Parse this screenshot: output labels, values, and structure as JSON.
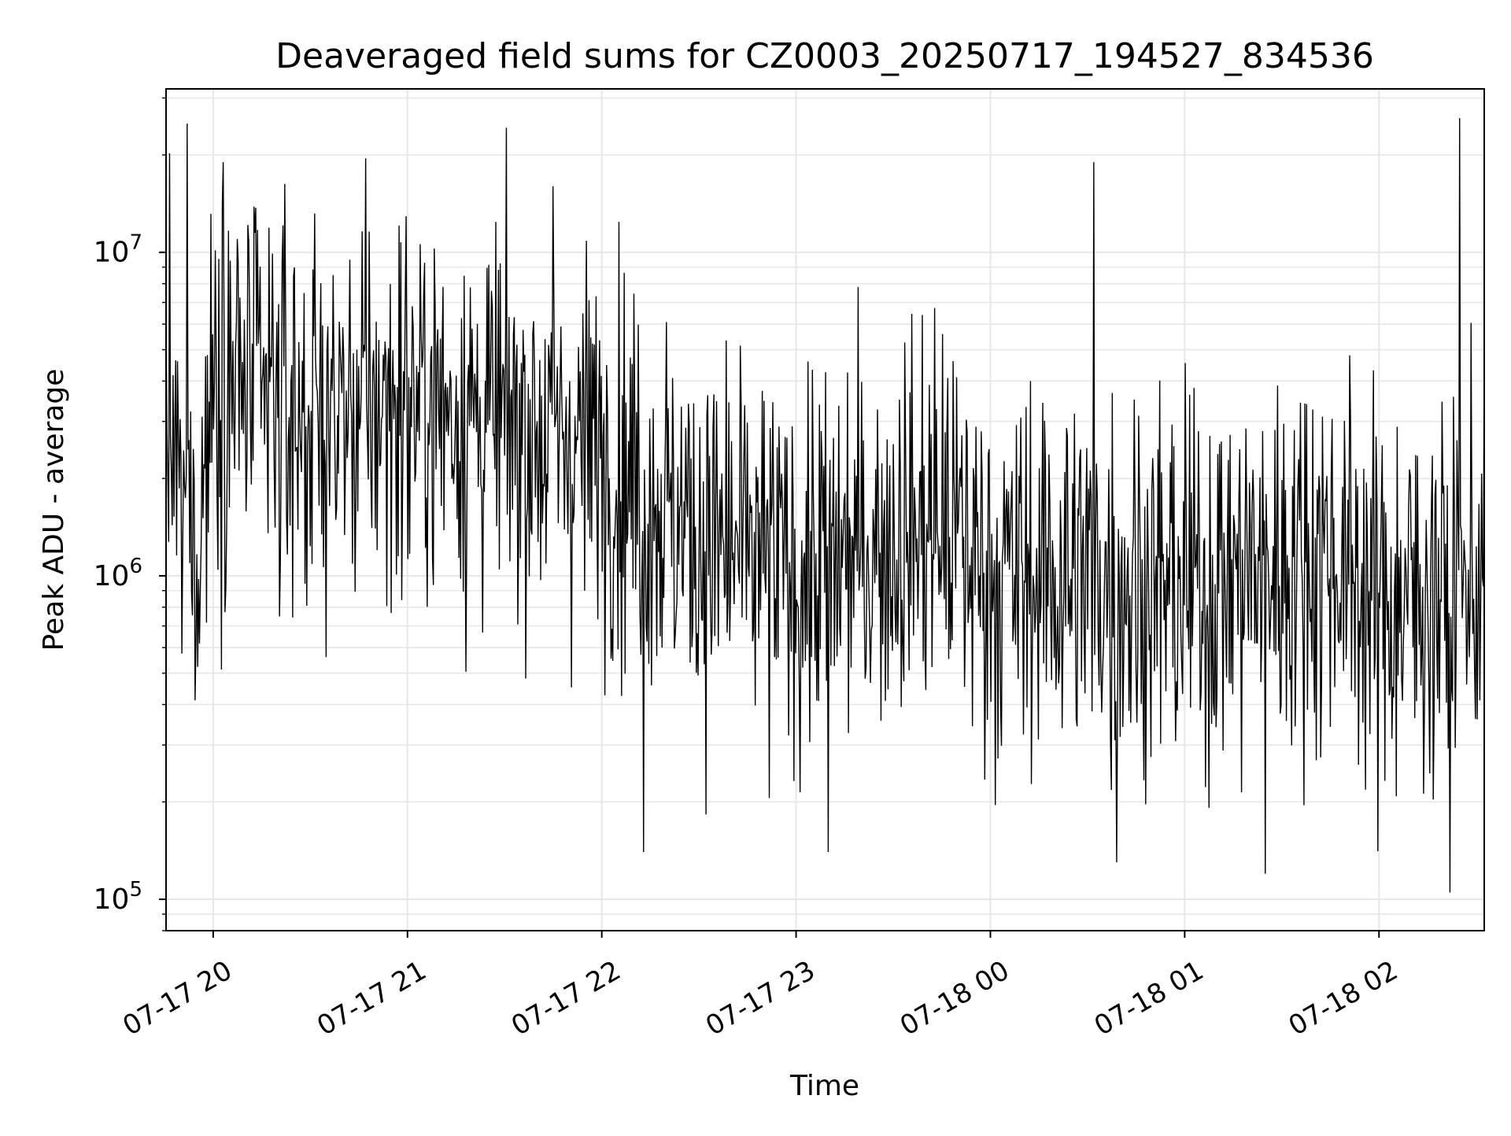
{
  "chart_data": {
    "type": "line",
    "title": "Deaveraged field sums for CZ0003_20250717_194527_834536",
    "xlabel": "Time",
    "ylabel": "Peak ADU - average",
    "yscale": "log",
    "ylim": [
      80000,
      32000000
    ],
    "xlim": [
      "2025-07-17 19:45:27",
      "2025-07-18 02:32:30"
    ],
    "x_ticks": [
      {
        "value": "2025-07-17 20:00",
        "label": "07-17 20"
      },
      {
        "value": "2025-07-17 21:00",
        "label": "07-17 21"
      },
      {
        "value": "2025-07-17 22:00",
        "label": "07-17 22"
      },
      {
        "value": "2025-07-17 23:00",
        "label": "07-17 23"
      },
      {
        "value": "2025-07-18 00:00",
        "label": "07-18 00"
      },
      {
        "value": "2025-07-18 01:00",
        "label": "07-18 01"
      },
      {
        "value": "2025-07-18 02:00",
        "label": "07-18 02"
      }
    ],
    "y_ticks": [
      {
        "value": 100000,
        "base": "10",
        "exp": "5"
      },
      {
        "value": 1000000,
        "base": "10",
        "exp": "6"
      },
      {
        "value": 10000000,
        "base": "10",
        "exp": "7"
      }
    ],
    "grid": true,
    "line_color": "#000000",
    "series": [
      {
        "anchors": [
          {
            "x": "2025-07-17 19:45:27",
            "y": 3500000
          },
          {
            "x": "2025-07-17 19:50:00",
            "y": 1500000
          },
          {
            "x": "2025-07-17 19:55:00",
            "y": 1200000
          },
          {
            "x": "2025-07-17 20:00:00",
            "y": 4500000
          },
          {
            "x": "2025-07-17 20:15:00",
            "y": 3500000
          },
          {
            "x": "2025-07-17 20:30:00",
            "y": 3000000
          },
          {
            "x": "2025-07-17 21:00:00",
            "y": 3500000
          },
          {
            "x": "2025-07-17 21:30:00",
            "y": 3000000
          },
          {
            "x": "2025-07-17 22:00:00",
            "y": 2500000
          },
          {
            "x": "2025-07-17 22:30:00",
            "y": 1300000
          },
          {
            "x": "2025-07-17 23:00:00",
            "y": 1000000
          },
          {
            "x": "2025-07-17 23:45:00",
            "y": 1500000
          },
          {
            "x": "2025-07-18 00:00:00",
            "y": 1000000
          },
          {
            "x": "2025-07-18 00:30:00",
            "y": 1000000
          },
          {
            "x": "2025-07-18 01:00:00",
            "y": 900000
          },
          {
            "x": "2025-07-18 01:45:00",
            "y": 1200000
          },
          {
            "x": "2025-07-18 02:00:00",
            "y": 800000
          },
          {
            "x": "2025-07-18 02:32:30",
            "y": 1000000
          }
        ],
        "spikes": [
          {
            "x": "2025-07-17 19:52:00",
            "y": 25000000
          },
          {
            "x": "2025-07-17 20:03:00",
            "y": 19000000
          },
          {
            "x": "2025-07-17 21:45:00",
            "y": 16000000
          },
          {
            "x": "2025-07-18 00:32:00",
            "y": 19000000
          },
          {
            "x": "2025-07-18 02:25:00",
            "y": 26000000
          },
          {
            "x": "2025-07-17 22:13:00",
            "y": 140000
          },
          {
            "x": "2025-07-17 23:10:00",
            "y": 140000
          },
          {
            "x": "2025-07-18 00:39:00",
            "y": 130000
          },
          {
            "x": "2025-07-18 01:25:00",
            "y": 120000
          },
          {
            "x": "2025-07-18 02:22:00",
            "y": 105000
          }
        ]
      }
    ]
  }
}
